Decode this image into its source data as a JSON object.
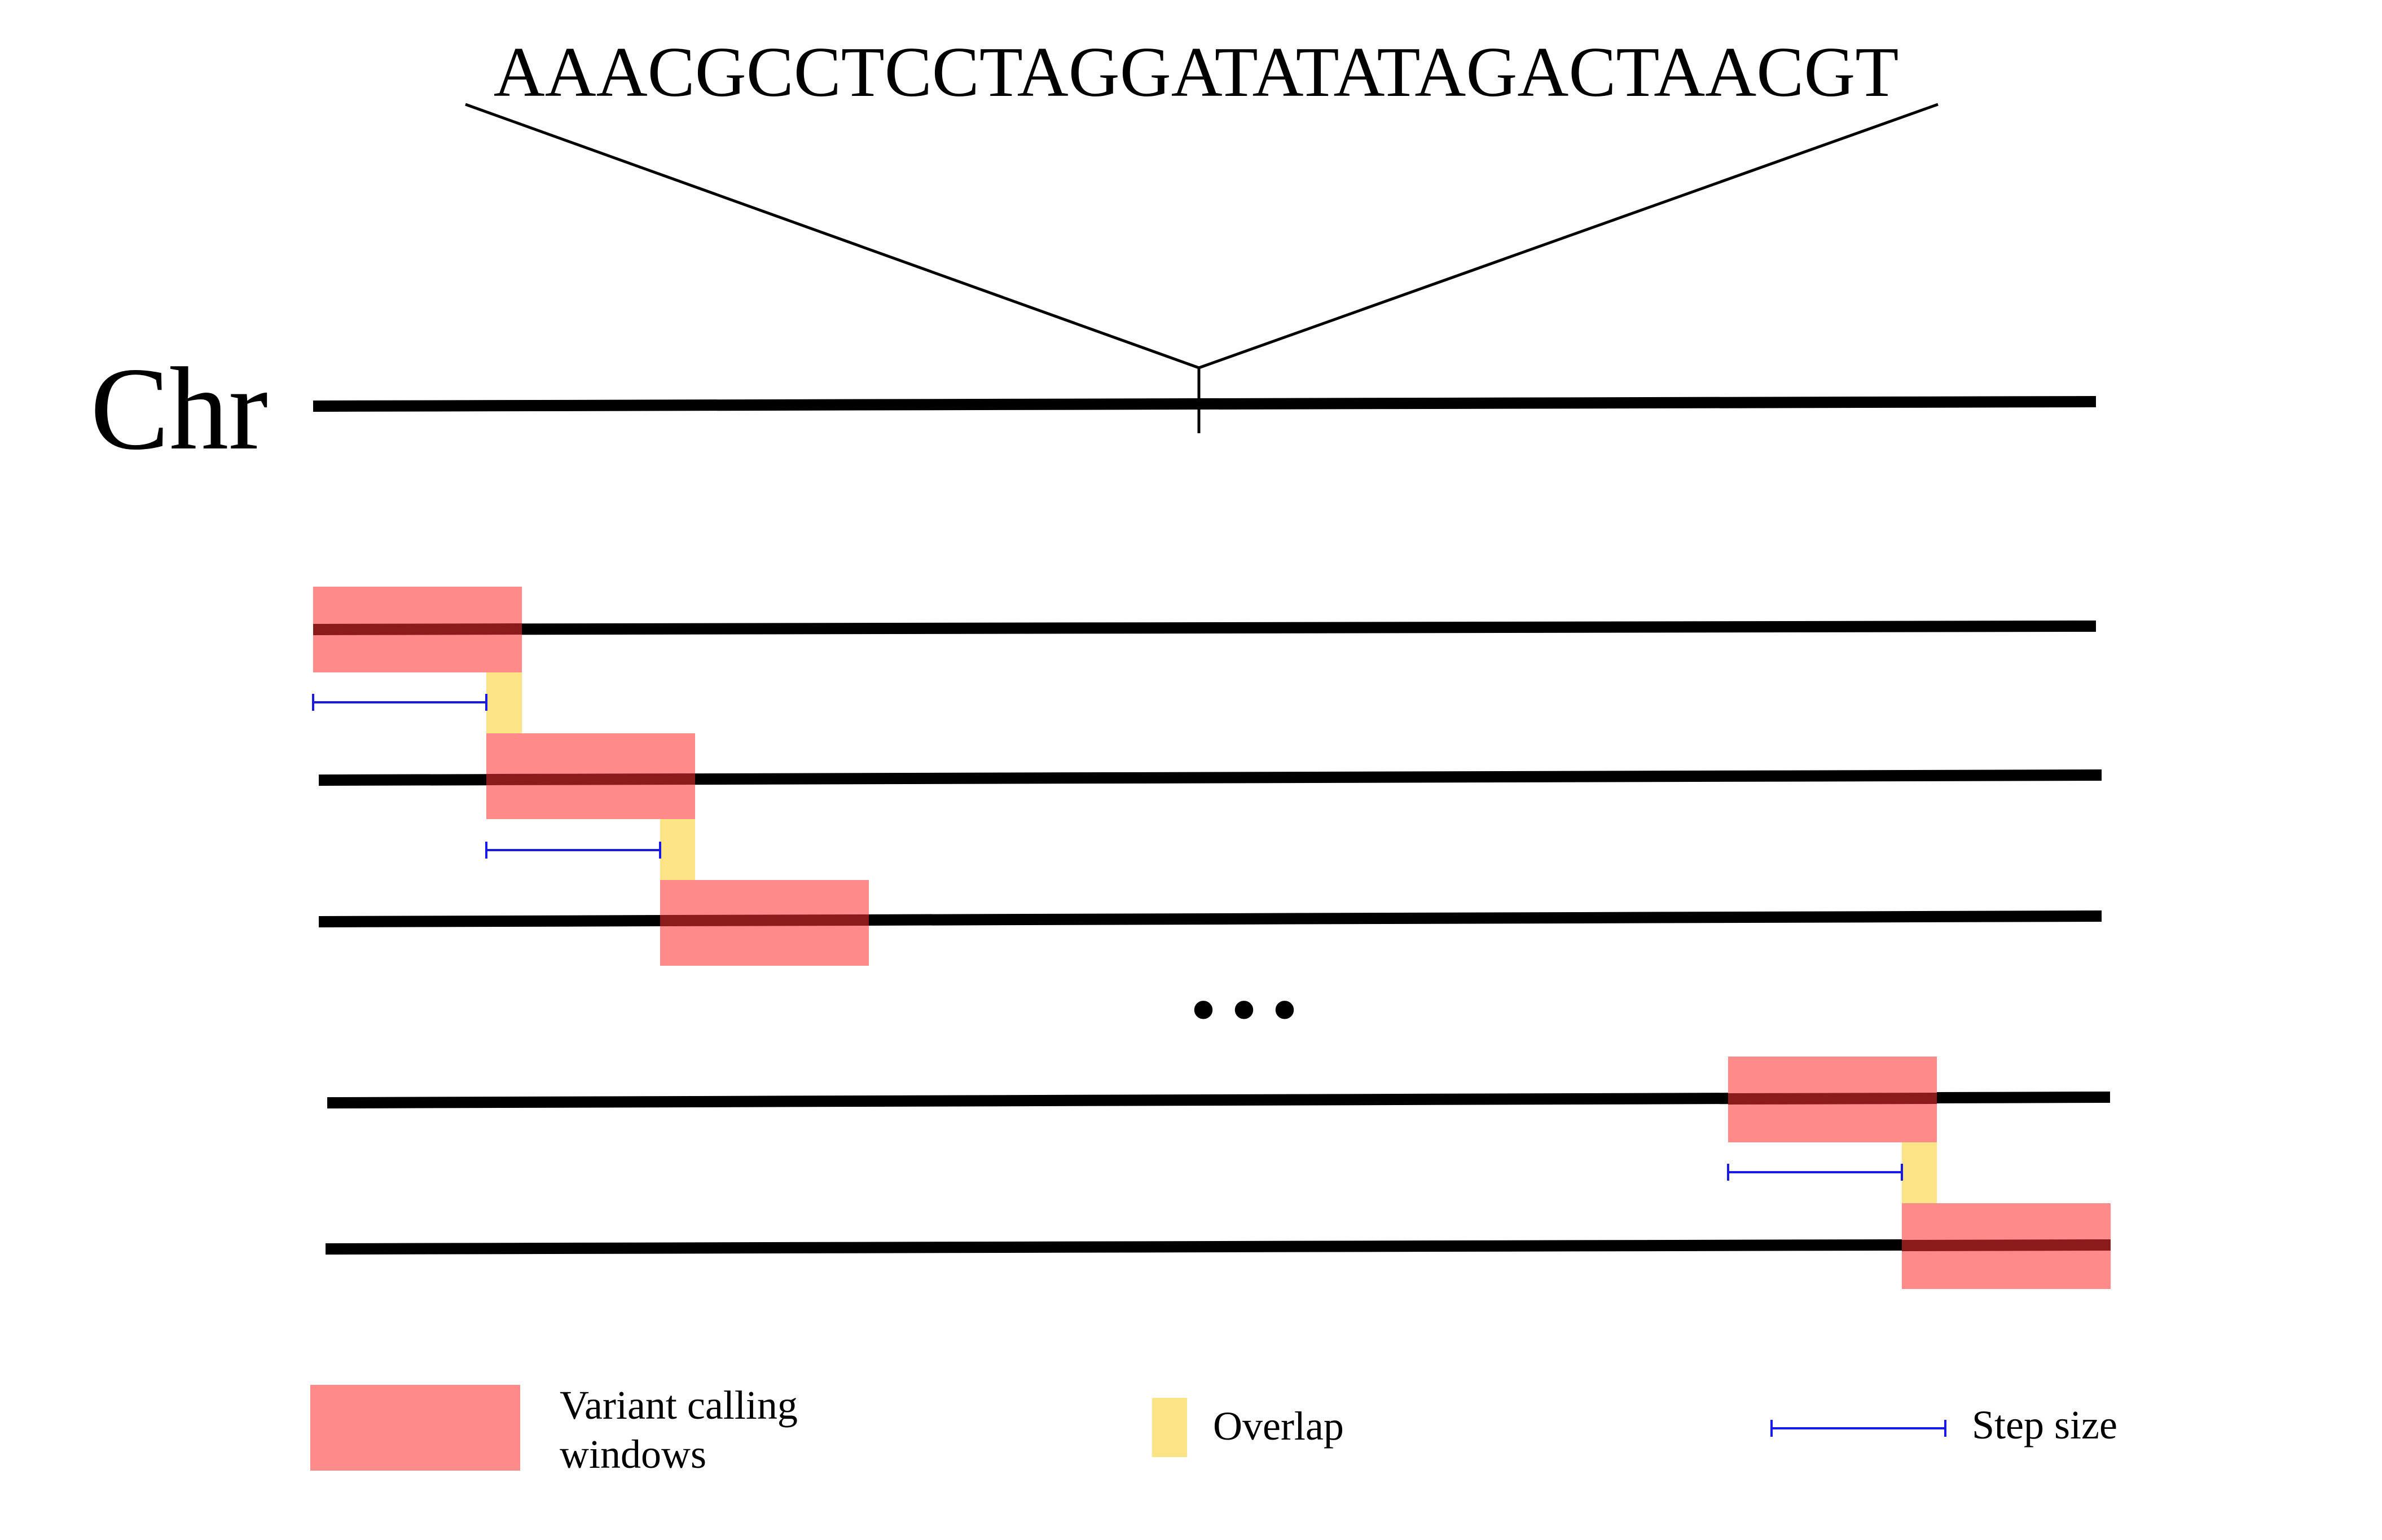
{
  "sequence": "AAACGCCTCCTAGGATATATAGACTAACGT",
  "chromosome_label": "Chr",
  "ellipsis": "• • •",
  "legend": {
    "windows_line1": "Variant calling",
    "windows_line2": "windows",
    "overlap": "Overlap",
    "step_size": "Step size"
  },
  "colors": {
    "window": "#ff8a8a",
    "window_line": "#8b1a1a",
    "overlap": "#fde486",
    "step": "#1a1ae6",
    "line": "#000000"
  }
}
